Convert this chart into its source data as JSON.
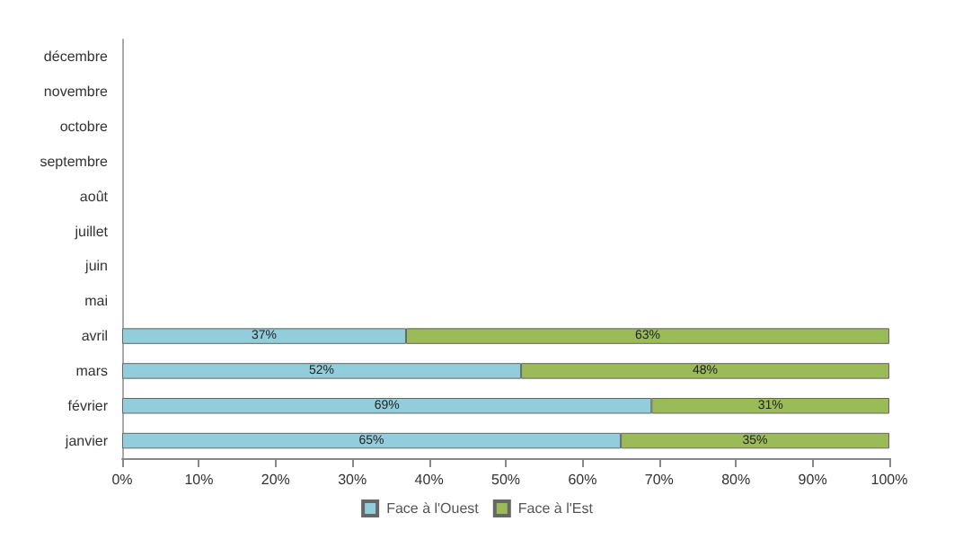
{
  "chart_data": {
    "type": "bar",
    "orientation": "horizontal",
    "stacked": true,
    "categories": [
      "décembre",
      "novembre",
      "octobre",
      "septembre",
      "août",
      "juillet",
      "juin",
      "mai",
      "avril",
      "mars",
      "février",
      "janvier"
    ],
    "series": [
      {
        "name": "Face à l'Ouest",
        "color": "#92cddc",
        "values": [
          null,
          null,
          null,
          null,
          null,
          null,
          null,
          null,
          37,
          52,
          69,
          65
        ],
        "value_labels": [
          null,
          null,
          null,
          null,
          null,
          null,
          null,
          null,
          "37%",
          "52%",
          "69%",
          "65%"
        ]
      },
      {
        "name": "Face à l'Est",
        "color": "#9bbb59",
        "values": [
          null,
          null,
          null,
          null,
          null,
          null,
          null,
          null,
          63,
          48,
          31,
          35
        ],
        "value_labels": [
          null,
          null,
          null,
          null,
          null,
          null,
          null,
          null,
          "63%",
          "48%",
          "31%",
          "35%"
        ]
      }
    ],
    "xlim": [
      0,
      100
    ],
    "xticks": [
      {
        "value": 0,
        "label": "0%"
      },
      {
        "value": 10,
        "label": "10%"
      },
      {
        "value": 20,
        "label": "20%"
      },
      {
        "value": 30,
        "label": "30%"
      },
      {
        "value": 40,
        "label": "40%"
      },
      {
        "value": 50,
        "label": "50%"
      },
      {
        "value": 60,
        "label": "60%"
      },
      {
        "value": 70,
        "label": "70%"
      },
      {
        "value": 80,
        "label": "80%"
      },
      {
        "value": 90,
        "label": "90%"
      },
      {
        "value": 100,
        "label": "100%"
      }
    ],
    "grid": false,
    "legend": "bottom"
  }
}
